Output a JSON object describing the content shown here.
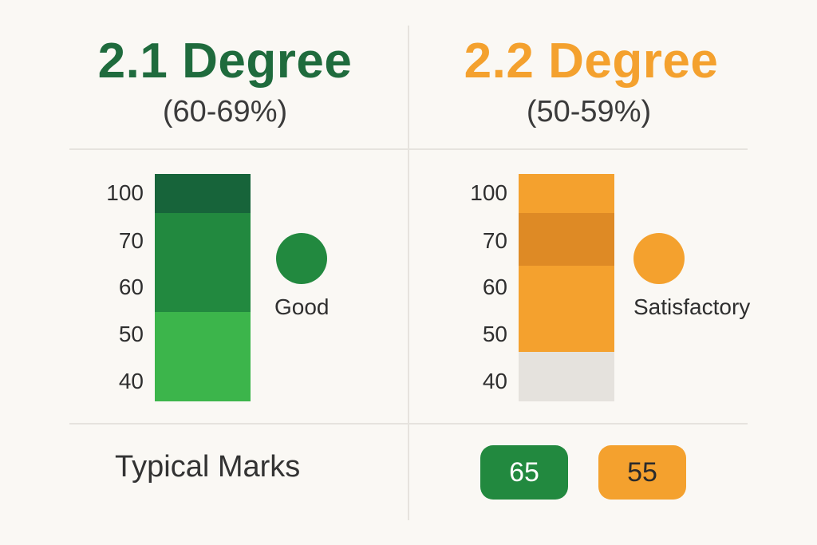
{
  "colors": {
    "green": "#1f7a3c",
    "green_dark": "#17643a",
    "green_mid": "#22893f",
    "green_light": "#3cb54b",
    "orange": "#f4a12e",
    "orange_dark": "#de8a25",
    "grey": "#e5e2dd",
    "divider": "#e6e3de"
  },
  "left": {
    "title": "2.1 Degree",
    "range": "(60-69%)",
    "ticks": [
      "100",
      "70",
      "60",
      "50",
      "40"
    ],
    "status": "Good"
  },
  "right": {
    "title": "2.2 Degree",
    "range": "(50-59%)",
    "ticks": [
      "100",
      "70",
      "60",
      "50",
      "40"
    ],
    "status": "Satisfactory"
  },
  "footer": {
    "label": "Typical Marks",
    "left_value": "65",
    "right_value": "55"
  }
}
